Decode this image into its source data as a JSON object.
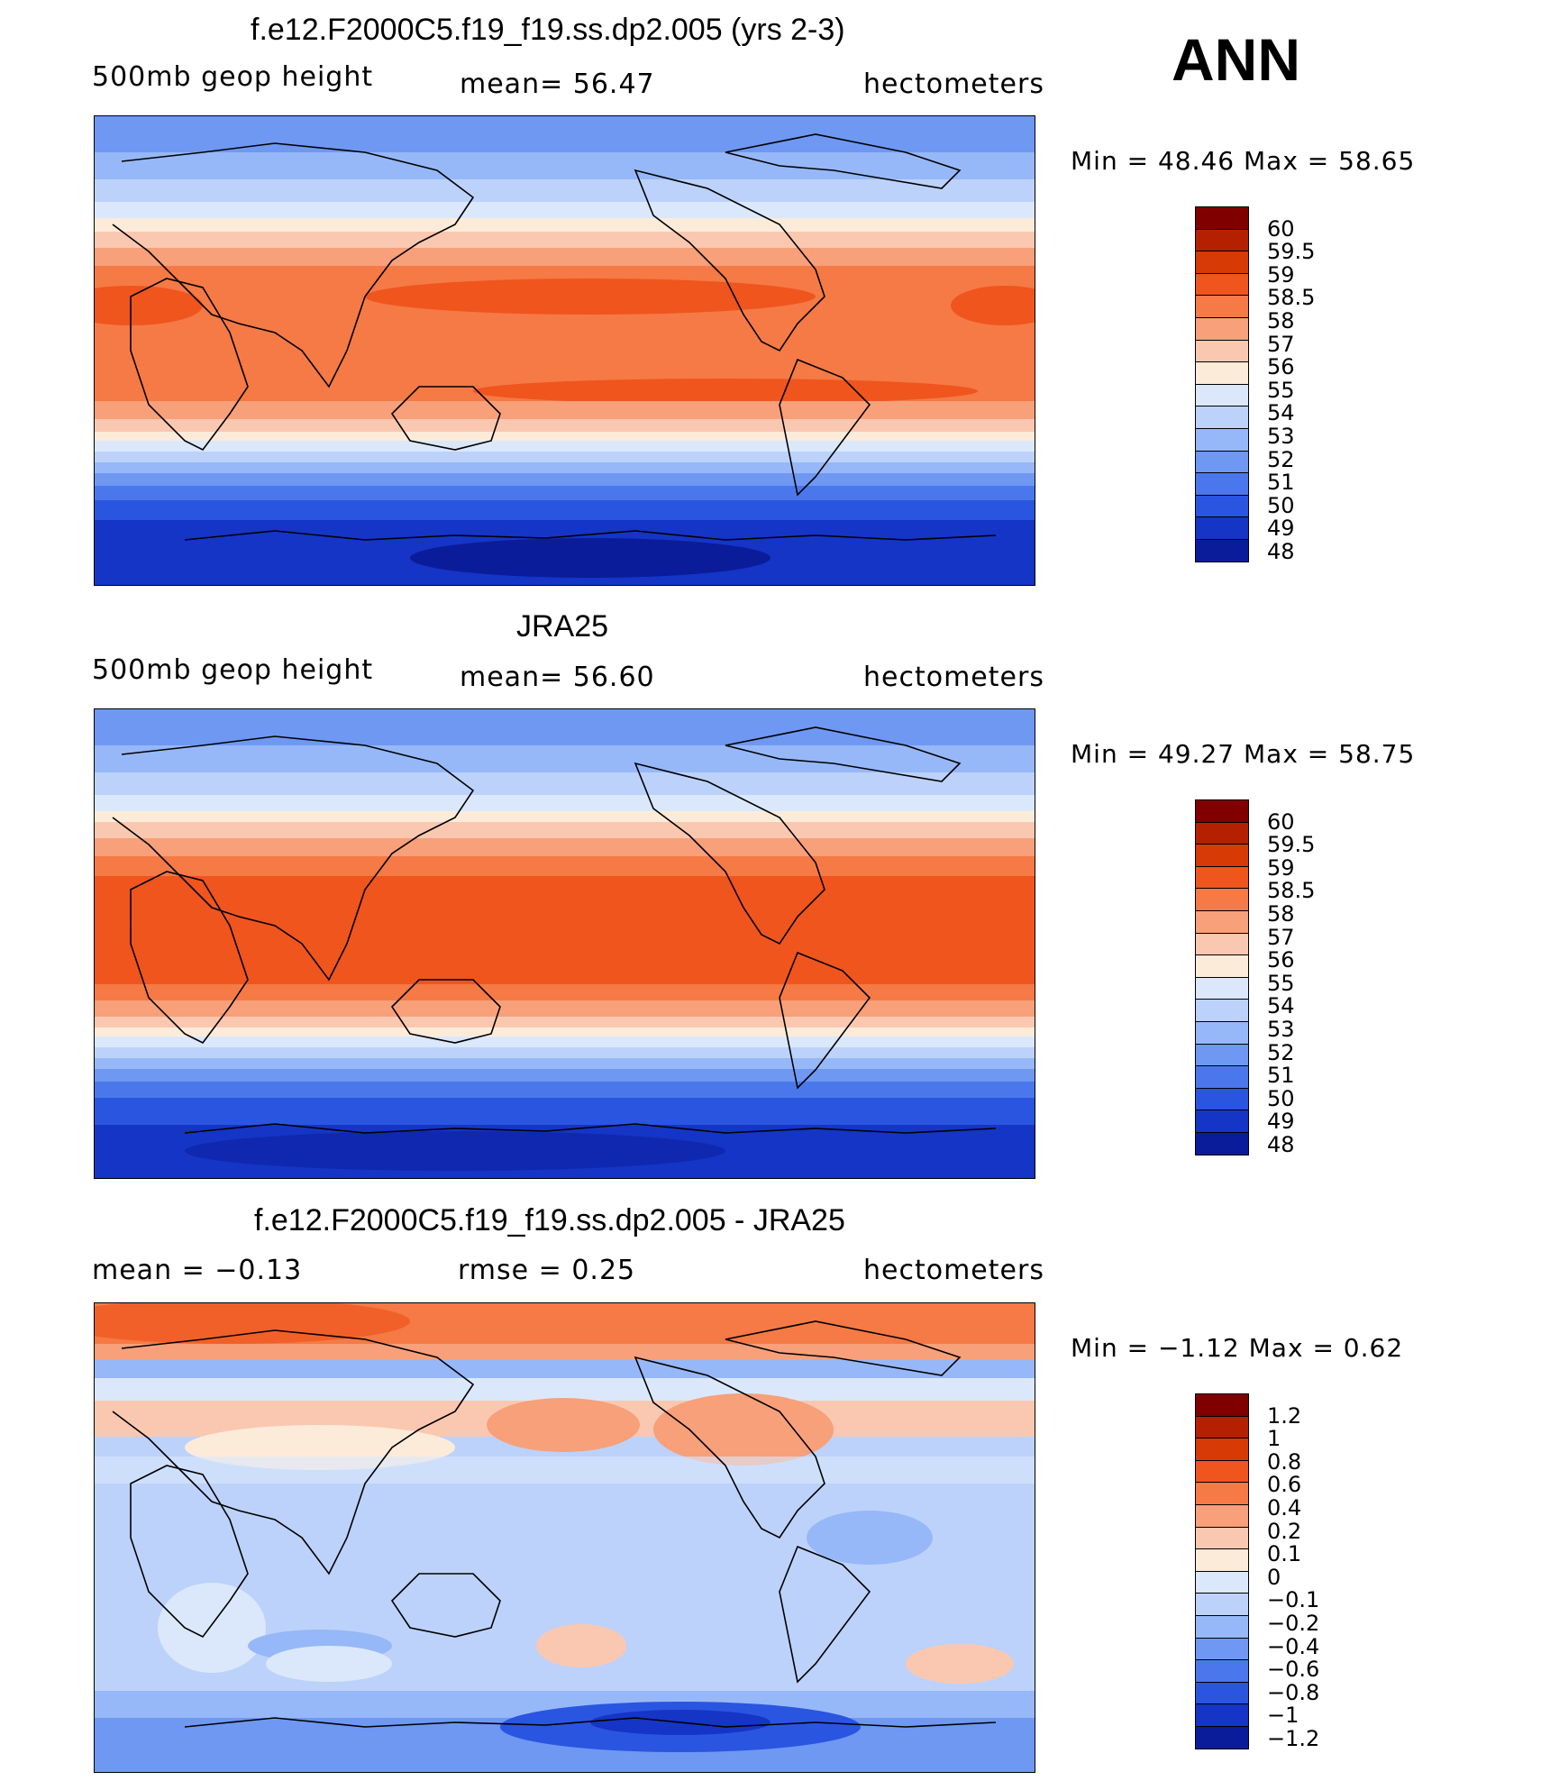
{
  "season": "ANN",
  "panels": [
    {
      "title": "f.e12.F2000C5.f19_f19.ss.dp2.005 (yrs 2-3)",
      "left_label": "500mb geop height",
      "center_label": "mean=   56.47",
      "right_label": "hectometers",
      "minmax": "Min =   48.46  Max =   58.65",
      "colorbar_labels": [
        "60",
        "59.5",
        "59",
        "58.5",
        "58",
        "57",
        "56",
        "55",
        "54",
        "53",
        "52",
        "51",
        "50",
        "49",
        "48"
      ]
    },
    {
      "title": "JRA25",
      "left_label": "500mb geop height",
      "center_label": "mean=   56.60",
      "right_label": "hectometers",
      "minmax": "Min =   49.27  Max =   58.75",
      "colorbar_labels": [
        "60",
        "59.5",
        "59",
        "58.5",
        "58",
        "57",
        "56",
        "55",
        "54",
        "53",
        "52",
        "51",
        "50",
        "49",
        "48"
      ]
    },
    {
      "title": "f.e12.F2000C5.f19_f19.ss.dp2.005 - JRA25",
      "left_label": "mean =   −0.13",
      "center_label": "rmse =    0.25",
      "right_label": "hectometers",
      "minmax": "Min =   −1.12  Max =    0.62",
      "colorbar_labels": [
        "1.2",
        "1",
        "0.8",
        "0.6",
        "0.4",
        "0.2",
        "0.1",
        "0",
        "−0.1",
        "−0.2",
        "−0.4",
        "−0.6",
        "−0.8",
        "−1",
        "−1.2"
      ]
    }
  ],
  "colors": [
    "#800000",
    "#b52000",
    "#d83a05",
    "#f0551e",
    "#f57a45",
    "#f7a07a",
    "#fac8b0",
    "#fdebda",
    "#dbe8fb",
    "#bcd2fa",
    "#96b8f8",
    "#6e98f2",
    "#4a78ec",
    "#2a55e0",
    "#1435c5",
    "#0a1c9a",
    "#000080"
  ]
}
